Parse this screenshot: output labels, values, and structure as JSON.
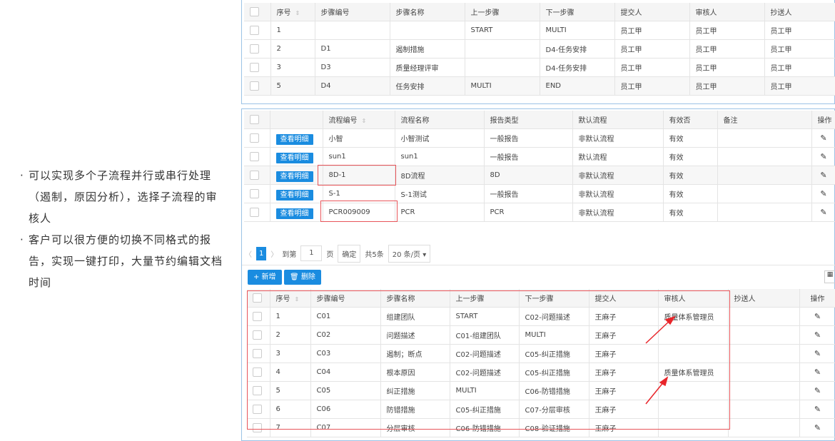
{
  "bullets": [
    "可以实现多个子流程并行或串行处理（遏制，原因分析），选择子流程的审核人",
    "客户可以很方便的切换不同格式的报告，实现一键打印，大量节约编辑文档时间"
  ],
  "table1": {
    "headers": [
      "序号",
      "步骤编号",
      "步骤名称",
      "上一步骤",
      "下一步骤",
      "提交人",
      "审核人",
      "抄送人"
    ],
    "rows": [
      [
        "1",
        "",
        "",
        "START",
        "MULTI",
        "员工甲",
        "员工甲",
        "员工甲"
      ],
      [
        "2",
        "D1",
        "遏制措施",
        "",
        "D4-任务安排",
        "员工甲",
        "员工甲",
        "员工甲"
      ],
      [
        "3",
        "D3",
        "质量经理评审",
        "",
        "D4-任务安排",
        "员工甲",
        "员工甲",
        "员工甲"
      ],
      [
        "5",
        "D4",
        "任务安排",
        "MULTI",
        "END",
        "员工甲",
        "员工甲",
        "员工甲"
      ]
    ]
  },
  "table2": {
    "headers": [
      "流程编号",
      "流程名称",
      "报告类型",
      "默认流程",
      "有效否",
      "备注",
      "操作"
    ],
    "view_label": "查看明细",
    "rows": [
      [
        "小智",
        "小智测试",
        "一般报告",
        "非默认流程",
        "有效",
        ""
      ],
      [
        "sun1",
        "sun1",
        "一般报告",
        "默认流程",
        "有效",
        ""
      ],
      [
        "8D-1",
        "8D流程",
        "8D",
        "非默认流程",
        "有效",
        ""
      ],
      [
        "S-1",
        "S-1测试",
        "一般报告",
        "非默认流程",
        "有效",
        ""
      ],
      [
        "PCR009009",
        "PCR",
        "PCR",
        "非默认流程",
        "有效",
        ""
      ]
    ]
  },
  "pagination": {
    "current": "1",
    "goto_label": "到第",
    "page_value": "1",
    "page_unit": "页",
    "confirm": "确定",
    "total": "共5条",
    "page_size": "20 条/页"
  },
  "toolbar": {
    "add": "+ 新增",
    "delete": "删除"
  },
  "table3": {
    "headers": [
      "序号",
      "步骤编号",
      "步骤名称",
      "上一步骤",
      "下一步骤",
      "提交人",
      "审核人",
      "抄送人",
      "操作"
    ],
    "rows": [
      [
        "1",
        "C01",
        "组建团队",
        "START",
        "C02-问题描述",
        "王麻子",
        "质量体系管理员",
        ""
      ],
      [
        "2",
        "C02",
        "问题描述",
        "C01-组建团队",
        "MULTI",
        "王麻子",
        "",
        ""
      ],
      [
        "3",
        "C03",
        "遏制；断点",
        "C02-问题描述",
        "C05-纠正措施",
        "王麻子",
        "",
        ""
      ],
      [
        "4",
        "C04",
        "根本原因",
        "C02-问题描述",
        "C05-纠正措施",
        "王麻子",
        "质量体系管理员",
        ""
      ],
      [
        "5",
        "C05",
        "纠正措施",
        "MULTI",
        "C06-防错措施",
        "王麻子",
        "",
        ""
      ],
      [
        "6",
        "C06",
        "防错措施",
        "C05-纠正措施",
        "C07-分层审核",
        "王麻子",
        "",
        ""
      ],
      [
        "7",
        "C07",
        "分层审核",
        "C06-防错措施",
        "C08-验证措施",
        "王麻子",
        "",
        ""
      ]
    ]
  },
  "colors": {
    "accent": "#1a8ce0",
    "annotation": "#e8555a"
  }
}
